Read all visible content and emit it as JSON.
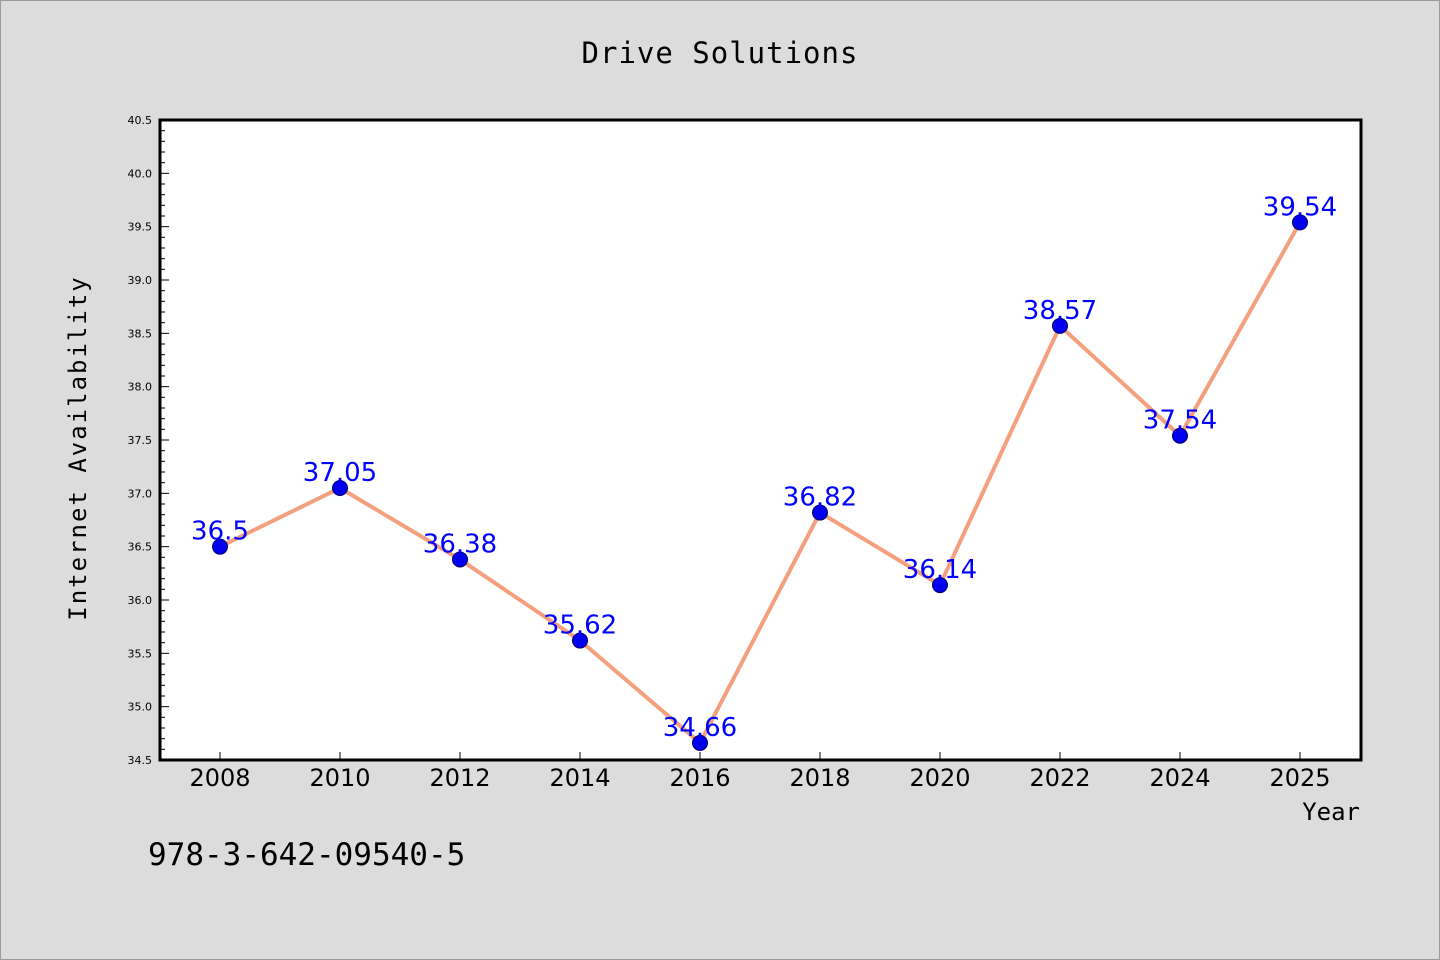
{
  "chart_data": {
    "type": "line",
    "title": "Drive Solutions",
    "xlabel": "Year",
    "ylabel": "Internet Availability",
    "x": [
      "2008",
      "2010",
      "2012",
      "2014",
      "2016",
      "2018",
      "2020",
      "2022",
      "2024",
      "2025"
    ],
    "series": [
      {
        "values": [
          36.5,
          37.05,
          36.38,
          35.62,
          34.66,
          36.82,
          36.14,
          38.57,
          37.54,
          39.54
        ],
        "labels": [
          "36.5",
          "37.05",
          "36.38",
          "35.62",
          "34.66",
          "36.82",
          "36.14",
          "38.57",
          "37.54",
          "39.54"
        ],
        "line_color": "#f4a07e",
        "marker_color": "#0000ee",
        "label_color": "#0000ff"
      }
    ],
    "ylim": [
      34.5,
      40.5
    ],
    "yticks": [
      "34.5",
      "35.0",
      "35.5",
      "36.0",
      "36.5",
      "37.0",
      "37.5",
      "38.0",
      "38.5",
      "39.0",
      "39.5",
      "40.0",
      "40.5"
    ],
    "grid": false,
    "legend": "none"
  },
  "footnote": "978-3-642-09540-5",
  "colors": {
    "background": "#dcdcdc",
    "plot_area": "#ffffff",
    "axis": "#000000"
  }
}
